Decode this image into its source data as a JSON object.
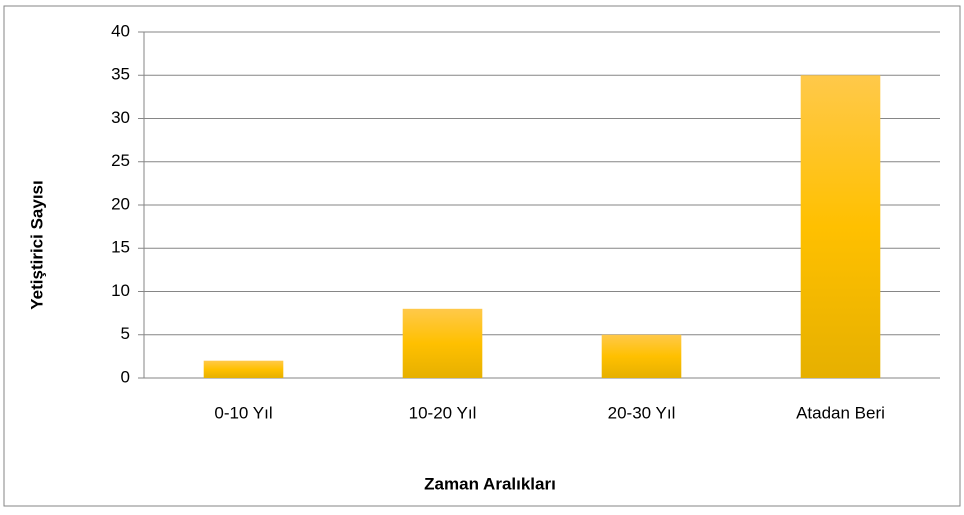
{
  "chart_data": {
    "type": "bar",
    "x_label": "Zaman Aralıkları",
    "y_label": "Yetiştirici Sayısı",
    "categories": [
      "0-10 Yıl",
      "10-20 Yıl",
      "20-30 Yıl",
      "Atadan Beri"
    ],
    "values": [
      2,
      8,
      5,
      35
    ],
    "color": "#ffc000",
    "ylim": [
      0,
      40
    ],
    "yticks": [
      0,
      5,
      10,
      15,
      20,
      25,
      30,
      35,
      40
    ],
    "grid": true
  }
}
